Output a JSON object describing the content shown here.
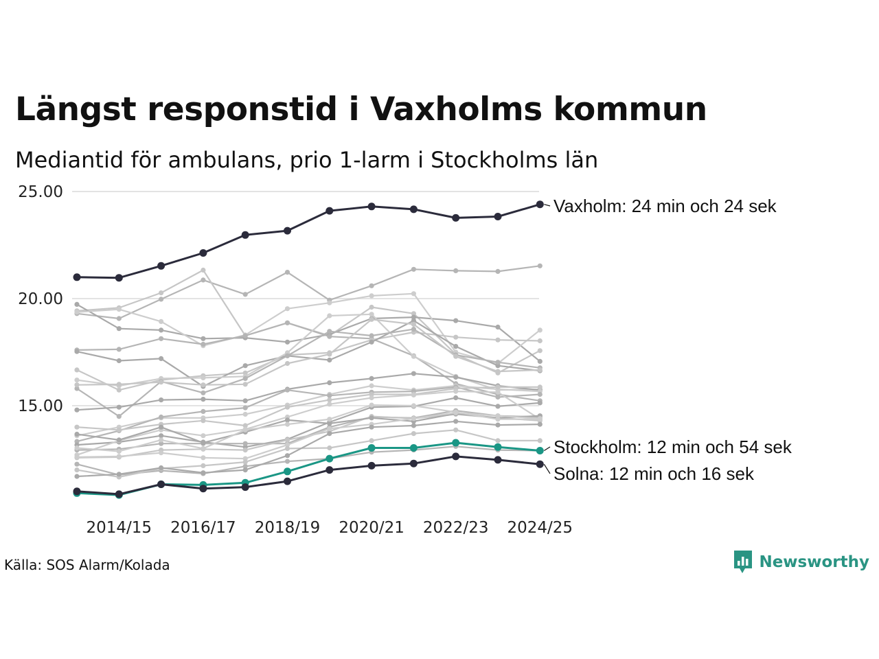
{
  "title": "Längst responstid i Vaxholms kommun",
  "subtitle": "Mediantid för ambulans, prio 1-larm i Stockholms län",
  "source": "Källa: SOS Alarm/Kolada",
  "brand": {
    "name": "Newsworthy",
    "color": "#2a9483",
    "icon": "newsworthy-logo-icon"
  },
  "colors": {
    "background_line": "#bdbdbd",
    "highlight_dark": "#2b2b3b",
    "highlight_teal": "#1a9685",
    "grid": "#e3e3e3"
  },
  "chart_data": {
    "type": "line",
    "title": "Längst responstid i Vaxholms kommun",
    "subtitle": "Mediantid för ambulans, prio 1-larm i Stockholms län",
    "xlabel": "",
    "ylabel": "",
    "x": [
      "2013/14",
      "2014/15",
      "2015/16",
      "2016/17",
      "2017/18",
      "2018/19",
      "2019/20",
      "2020/21",
      "2021/22",
      "2022/23",
      "2023/24",
      "2024/25"
    ],
    "x_tick_labels": [
      "2014/15",
      "2016/17",
      "2018/19",
      "2020/21",
      "2022/23",
      "2024/25"
    ],
    "y_ticks": [
      "15.00",
      "20.00",
      "25.00"
    ],
    "ylim": [
      10.6,
      25.1
    ],
    "grid": true,
    "highlighted": [
      {
        "name": "Vaxholm",
        "label": "Vaxholm: 24 min och 24 sek",
        "color": "#2b2b3b",
        "values": [
          21.0,
          20.97,
          21.53,
          22.13,
          22.97,
          23.17,
          24.1,
          24.3,
          24.17,
          23.77,
          23.83,
          24.4
        ]
      },
      {
        "name": "Stockholm",
        "label": "Stockholm: 12 min och 54 sek",
        "color": "#1a9685",
        "values": [
          10.92,
          10.83,
          11.33,
          11.3,
          11.4,
          11.93,
          12.53,
          13.03,
          13.03,
          13.27,
          13.07,
          12.9
        ]
      },
      {
        "name": "Solna",
        "label": "Solna: 12 min och 16 sek",
        "color": "#2b2b3b",
        "values": [
          11.0,
          10.87,
          11.33,
          11.13,
          11.2,
          11.47,
          12.0,
          12.2,
          12.3,
          12.63,
          12.47,
          12.27
        ]
      }
    ],
    "series": [
      {
        "name": "other-1",
        "values": [
          19.3,
          19.07,
          19.97,
          20.87,
          20.2,
          21.23,
          19.93,
          20.6,
          21.37,
          21.3,
          21.27,
          21.53
        ]
      },
      {
        "name": "other-2",
        "values": [
          19.43,
          19.57,
          20.27,
          21.33,
          18.27,
          18.87,
          18.27,
          19.6,
          19.3,
          17.4,
          16.53,
          17.57
        ]
      },
      {
        "name": "other-3",
        "values": [
          19.73,
          18.6,
          18.53,
          18.13,
          18.17,
          17.97,
          18.33,
          19.07,
          19.13,
          18.97,
          18.67,
          17.07
        ]
      },
      {
        "name": "other-4",
        "values": [
          19.37,
          19.5,
          18.93,
          17.8,
          18.3,
          19.53,
          19.8,
          20.13,
          20.23,
          17.5,
          16.97,
          18.53
        ]
      },
      {
        "name": "other-5",
        "values": [
          17.6,
          17.63,
          18.13,
          17.87,
          18.27,
          18.87,
          18.23,
          18.13,
          17.33,
          16.03,
          15.53,
          15.23
        ]
      },
      {
        "name": "other-6",
        "values": [
          16.67,
          15.73,
          16.2,
          16.4,
          16.53,
          17.37,
          17.47,
          18.07,
          18.43,
          18.2,
          18.07,
          18.03
        ]
      },
      {
        "name": "other-7",
        "values": [
          17.53,
          17.1,
          17.2,
          15.9,
          16.87,
          17.33,
          17.13,
          17.97,
          18.97,
          17.77,
          16.87,
          16.63
        ]
      },
      {
        "name": "other-8",
        "values": [
          16.2,
          15.93,
          16.27,
          16.3,
          16.37,
          17.47,
          19.2,
          19.27,
          17.3,
          16.37,
          15.73,
          15.77
        ]
      },
      {
        "name": "other-9",
        "values": [
          15.8,
          14.5,
          16.13,
          15.6,
          16.27,
          17.33,
          18.47,
          18.27,
          18.57,
          17.37,
          17.03,
          16.77
        ]
      },
      {
        "name": "other-10",
        "values": [
          15.97,
          16.0,
          16.1,
          15.97,
          16.0,
          16.97,
          17.4,
          19.03,
          18.8,
          17.3,
          16.6,
          16.67
        ]
      },
      {
        "name": "other-11",
        "values": [
          14.8,
          14.93,
          15.27,
          15.3,
          15.23,
          15.77,
          16.07,
          16.27,
          16.5,
          16.33,
          15.93,
          15.73
        ]
      },
      {
        "name": "other-12",
        "values": [
          13.6,
          14.0,
          14.43,
          14.43,
          14.6,
          15.03,
          15.53,
          15.93,
          15.73,
          15.93,
          15.77,
          15.67
        ]
      },
      {
        "name": "other-13",
        "values": [
          13.33,
          13.83,
          14.47,
          14.73,
          14.9,
          15.73,
          15.47,
          15.63,
          15.67,
          15.87,
          15.4,
          15.53
        ]
      },
      {
        "name": "other-14",
        "values": [
          14.0,
          13.87,
          14.13,
          14.3,
          14.07,
          14.93,
          15.27,
          15.53,
          15.53,
          15.8,
          15.87,
          15.87
        ]
      },
      {
        "name": "other-15",
        "values": [
          13.17,
          13.3,
          13.6,
          13.3,
          13.07,
          13.43,
          14.23,
          14.93,
          14.97,
          15.37,
          14.97,
          15.13
        ]
      },
      {
        "name": "other-16",
        "values": [
          12.7,
          13.37,
          13.87,
          13.6,
          13.9,
          14.47,
          15.07,
          15.37,
          15.5,
          15.67,
          15.63,
          14.37
        ]
      },
      {
        "name": "other-17",
        "values": [
          12.93,
          12.97,
          13.23,
          13.23,
          13.23,
          13.23,
          14.0,
          14.47,
          14.43,
          14.77,
          14.53,
          14.47
        ]
      },
      {
        "name": "other-18",
        "values": [
          12.57,
          12.6,
          12.93,
          12.97,
          12.93,
          13.4,
          13.8,
          14.5,
          14.4,
          14.6,
          14.43,
          14.3
        ]
      },
      {
        "name": "other-19",
        "values": [
          13.67,
          13.4,
          14.0,
          13.27,
          13.77,
          14.33,
          14.17,
          14.43,
          14.27,
          14.63,
          14.43,
          14.53
        ]
      },
      {
        "name": "other-20",
        "values": [
          12.6,
          12.63,
          12.8,
          12.57,
          12.53,
          13.17,
          13.93,
          14.13,
          14.4,
          14.67,
          14.53,
          14.4
        ]
      },
      {
        "name": "other-21",
        "values": [
          12.27,
          11.77,
          11.97,
          11.83,
          12.17,
          12.4,
          12.53,
          12.83,
          12.93,
          13.1,
          12.93,
          12.9
        ]
      },
      {
        "name": "other-22",
        "values": [
          12.0,
          11.67,
          12.07,
          12.2,
          12.37,
          13.0,
          13.03,
          13.37,
          13.7,
          13.87,
          13.37,
          13.37
        ]
      },
      {
        "name": "other-23",
        "values": [
          11.7,
          11.8,
          12.1,
          11.87,
          12.0,
          12.67,
          13.7,
          14.0,
          14.07,
          14.27,
          14.1,
          14.13
        ]
      },
      {
        "name": "other-24",
        "values": [
          13.03,
          12.87,
          13.4,
          13.0,
          13.87,
          14.13,
          14.37,
          15.03,
          15.0,
          14.7,
          14.37,
          14.37
        ]
      }
    ]
  }
}
